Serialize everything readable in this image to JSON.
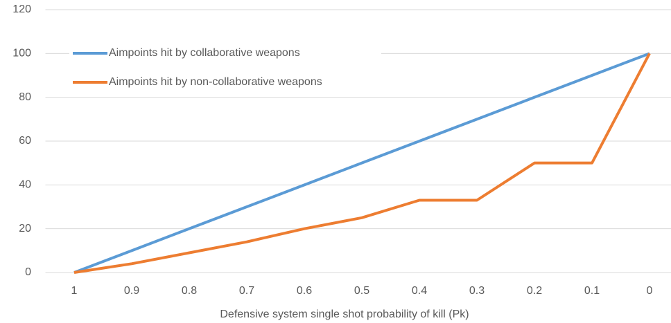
{
  "chart_data": {
    "type": "line",
    "x_label": "Defensive system single shot probability of kill (Pk)",
    "categories": [
      "1",
      "0.9",
      "0.8",
      "0.7",
      "0.6",
      "0.5",
      "0.4",
      "0.3",
      "0.2",
      "0.1",
      "0"
    ],
    "series": [
      {
        "name": "Aimpoints hit by collaborative weapons",
        "color": "#5b9bd5",
        "values": [
          0,
          10,
          20,
          30,
          40,
          50,
          60,
          70,
          80,
          90,
          100
        ]
      },
      {
        "name": "Aimpoints hit by non-collaborative weapons",
        "color": "#ed7d31",
        "values": [
          0,
          4,
          9,
          14,
          20,
          25,
          33,
          33,
          50,
          50,
          100
        ]
      }
    ],
    "ylim": [
      0,
      120
    ],
    "yticks": [
      0,
      20,
      40,
      60,
      80,
      100,
      120
    ],
    "grid": true,
    "legend": "upper left"
  }
}
